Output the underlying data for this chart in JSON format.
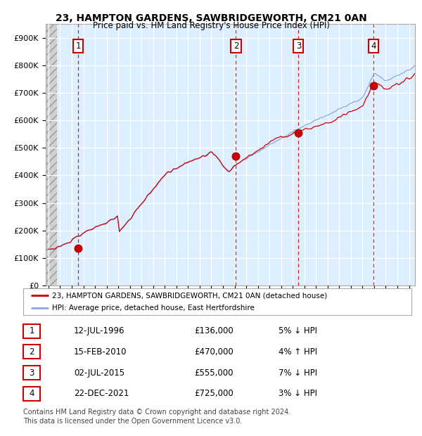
{
  "title1": "23, HAMPTON GARDENS, SAWBRIDGEWORTH, CM21 0AN",
  "title2": "Price paid vs. HM Land Registry's House Price Index (HPI)",
  "ylim": [
    0,
    950000
  ],
  "yticks": [
    0,
    100000,
    200000,
    300000,
    400000,
    500000,
    600000,
    700000,
    800000,
    900000
  ],
  "ytick_labels": [
    "£0",
    "£100K",
    "£200K",
    "£300K",
    "£400K",
    "£500K",
    "£600K",
    "£700K",
    "£800K",
    "£900K"
  ],
  "xmin": 1993.75,
  "xmax": 2025.5,
  "purchases": [
    {
      "year": 1996.54,
      "price": 136000,
      "label": "1"
    },
    {
      "year": 2010.12,
      "price": 470000,
      "label": "2"
    },
    {
      "year": 2015.5,
      "price": 555000,
      "label": "3"
    },
    {
      "year": 2021.97,
      "price": 725000,
      "label": "4"
    }
  ],
  "table_rows": [
    {
      "num": "1",
      "date": "12-JUL-1996",
      "price": "£136,000",
      "hpi": "5% ↓ HPI"
    },
    {
      "num": "2",
      "date": "15-FEB-2010",
      "price": "£470,000",
      "hpi": "4% ↑ HPI"
    },
    {
      "num": "3",
      "date": "02-JUL-2015",
      "price": "£555,000",
      "hpi": "7% ↓ HPI"
    },
    {
      "num": "4",
      "date": "22-DEC-2021",
      "price": "£725,000",
      "hpi": "3% ↓ HPI"
    }
  ],
  "legend_line1": "23, HAMPTON GARDENS, SAWBRIDGEWORTH, CM21 0AN (detached house)",
  "legend_line2": "HPI: Average price, detached house, East Hertfordshire",
  "footer1": "Contains HM Land Registry data © Crown copyright and database right 2024.",
  "footer2": "This data is licensed under the Open Government Licence v3.0.",
  "line_color_red": "#cc0000",
  "line_color_blue": "#88aadd",
  "plot_bg": "#ddeeff",
  "grid_color": "#ffffff",
  "hatch_color": "#cccccc"
}
